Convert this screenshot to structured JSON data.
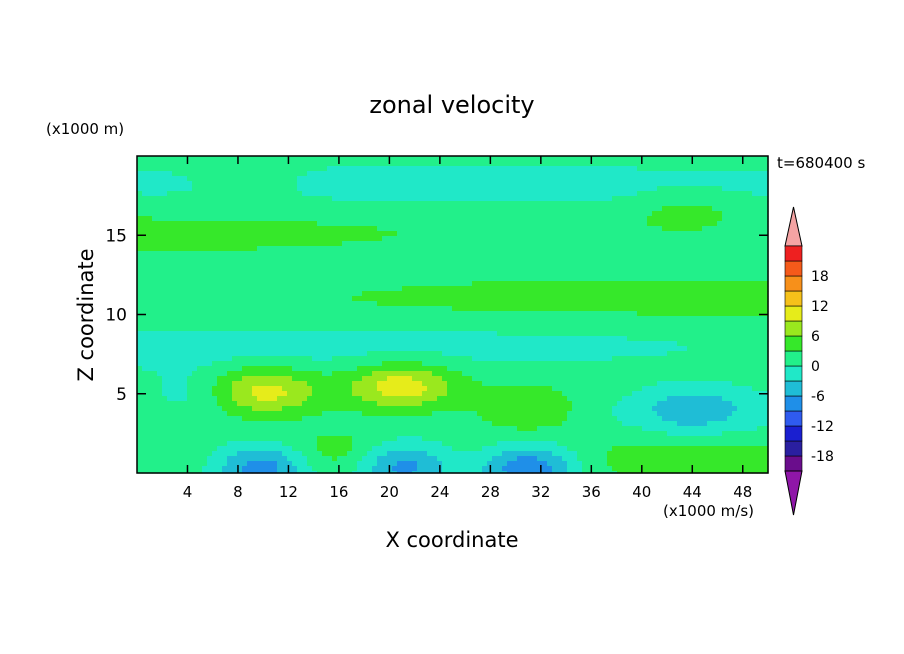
{
  "chart_data": {
    "type": "heatmap",
    "title": "zonal velocity",
    "xlabel": "X coordinate",
    "ylabel": "Z coordinate",
    "x_unit": "(x1000 m/s)",
    "y_unit": "(x1000 m)",
    "time_label": "t=680400 s",
    "xlim": [
      0,
      50
    ],
    "ylim": [
      0,
      20
    ],
    "x_ticks": [
      "4",
      "8",
      "12",
      "16",
      "20",
      "24",
      "28",
      "32",
      "36",
      "40",
      "44",
      "48"
    ],
    "y_ticks": [
      "5",
      "10",
      "15"
    ],
    "colorbar": {
      "labels": [
        "18",
        "12",
        "6",
        "0",
        "-6",
        "-12",
        "-18"
      ],
      "levels": [
        -21,
        -18,
        -15,
        -12,
        -9,
        -6,
        -3,
        0,
        3,
        6,
        9,
        12,
        15,
        18,
        21
      ],
      "colors": [
        "#6a0d8c",
        "#2a1fa0",
        "#1a1fd0",
        "#2f5bef",
        "#1f8fe8",
        "#1fbdd6",
        "#20e8c8",
        "#22f08a",
        "#36e82a",
        "#9ae81e",
        "#e6ec1a",
        "#f6c11a",
        "#f7901a",
        "#f55a1a",
        "#ee2020"
      ],
      "under_color": "#8f16a8",
      "over_color": "#f5a3a3"
    },
    "features": [
      {
        "x": 10,
        "z": 5.2,
        "value": 8
      },
      {
        "x": 21,
        "z": 5.5,
        "value": 9
      },
      {
        "x": 31,
        "z": 4.0,
        "value": 5
      },
      {
        "x": 16,
        "z": 1.2,
        "value": 3
      },
      {
        "x": 10,
        "z": 0.4,
        "value": -11
      },
      {
        "x": 21,
        "z": 0.5,
        "value": -11
      },
      {
        "x": 31,
        "z": 0.4,
        "value": -12
      },
      {
        "x": 44,
        "z": 4.0,
        "value": -5
      },
      {
        "x": 4,
        "z": 5.0,
        "value": -4
      },
      {
        "x": 43.5,
        "z": 16.5,
        "value": 3
      },
      {
        "x": 9,
        "z": 18.5,
        "value": 2
      }
    ]
  }
}
